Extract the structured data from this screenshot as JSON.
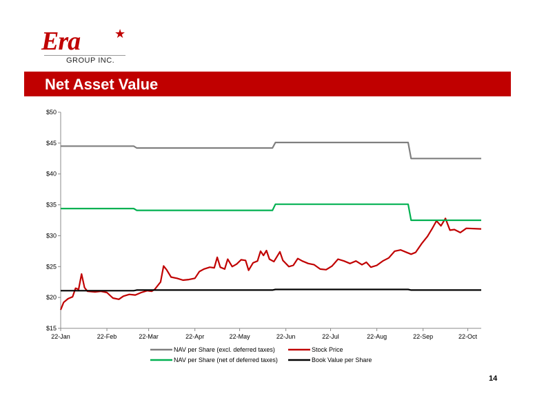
{
  "logo": {
    "wordmark": "Era",
    "subtitle": "GROUP INC."
  },
  "header": {
    "title": "Net Asset Value"
  },
  "page_number": "14",
  "colors": {
    "brand_red": "#c00000",
    "nav_gray": "#7f7f7f",
    "nav_green": "#00b050",
    "stock_red": "#c00000",
    "book_black": "#000000"
  },
  "chart_data": {
    "type": "line",
    "title": "",
    "xlabel": "",
    "ylabel": "",
    "x_ticks": [
      "22-Jan",
      "22-Feb",
      "22-Mar",
      "22-Apr",
      "22-May",
      "22-Jun",
      "22-Jul",
      "22-Aug",
      "22-Sep",
      "22-Oct"
    ],
    "y_ticks": [
      "$15",
      "$20",
      "$25",
      "$30",
      "$35",
      "$40",
      "$45",
      "$50"
    ],
    "ylim": [
      15,
      50
    ],
    "x_range": [
      "2013-01-22",
      "2013-10-31"
    ],
    "grid": false,
    "legend_position": "bottom",
    "series": [
      {
        "name": "NAV per Share (excl. deferred taxes)",
        "color": "#7f7f7f",
        "points": [
          [
            "2013-01-22",
            44.5
          ],
          [
            "2013-03-12",
            44.5
          ],
          [
            "2013-03-14",
            44.2
          ],
          [
            "2013-06-13",
            44.2
          ],
          [
            "2013-06-15",
            45.1
          ],
          [
            "2013-09-12",
            45.1
          ],
          [
            "2013-09-14",
            42.5
          ],
          [
            "2013-10-31",
            42.5
          ]
        ]
      },
      {
        "name": "Stock Price",
        "color": "#c00000",
        "points": [
          [
            "2013-01-22",
            18.0
          ],
          [
            "2013-01-24",
            19.2
          ],
          [
            "2013-01-27",
            19.8
          ],
          [
            "2013-01-30",
            20.1
          ],
          [
            "2013-02-01",
            21.5
          ],
          [
            "2013-02-03",
            21.3
          ],
          [
            "2013-02-05",
            23.8
          ],
          [
            "2013-02-07",
            21.6
          ],
          [
            "2013-02-09",
            21.0
          ],
          [
            "2013-02-14",
            20.9
          ],
          [
            "2013-02-18",
            21.0
          ],
          [
            "2013-02-22",
            20.8
          ],
          [
            "2013-02-26",
            19.9
          ],
          [
            "2013-03-02",
            19.7
          ],
          [
            "2013-03-05",
            20.2
          ],
          [
            "2013-03-09",
            20.5
          ],
          [
            "2013-03-13",
            20.4
          ],
          [
            "2013-03-17",
            20.8
          ],
          [
            "2013-03-21",
            21.1
          ],
          [
            "2013-03-24",
            21.0
          ],
          [
            "2013-03-26",
            21.3
          ],
          [
            "2013-03-30",
            22.5
          ],
          [
            "2013-04-01",
            25.1
          ],
          [
            "2013-04-03",
            24.5
          ],
          [
            "2013-04-06",
            23.3
          ],
          [
            "2013-04-10",
            23.1
          ],
          [
            "2013-04-14",
            22.8
          ],
          [
            "2013-04-18",
            22.9
          ],
          [
            "2013-04-22",
            23.1
          ],
          [
            "2013-04-25",
            24.2
          ],
          [
            "2013-04-28",
            24.6
          ],
          [
            "2013-05-02",
            24.9
          ],
          [
            "2013-05-05",
            24.8
          ],
          [
            "2013-05-07",
            26.5
          ],
          [
            "2013-05-09",
            24.9
          ],
          [
            "2013-05-12",
            24.6
          ],
          [
            "2013-05-14",
            26.2
          ],
          [
            "2013-05-17",
            25.0
          ],
          [
            "2013-05-20",
            25.4
          ],
          [
            "2013-05-23",
            26.1
          ],
          [
            "2013-05-26",
            26.0
          ],
          [
            "2013-05-28",
            24.4
          ],
          [
            "2013-05-31",
            25.6
          ],
          [
            "2013-06-03",
            25.9
          ],
          [
            "2013-06-05",
            27.5
          ],
          [
            "2013-06-07",
            26.8
          ],
          [
            "2013-06-09",
            27.6
          ],
          [
            "2013-06-11",
            26.2
          ],
          [
            "2013-06-14",
            25.8
          ],
          [
            "2013-06-18",
            27.4
          ],
          [
            "2013-06-20",
            26.0
          ],
          [
            "2013-06-24",
            25.0
          ],
          [
            "2013-06-27",
            25.2
          ],
          [
            "2013-06-30",
            26.3
          ],
          [
            "2013-07-03",
            25.9
          ],
          [
            "2013-07-07",
            25.5
          ],
          [
            "2013-07-11",
            25.3
          ],
          [
            "2013-07-15",
            24.6
          ],
          [
            "2013-07-19",
            24.5
          ],
          [
            "2013-07-23",
            25.1
          ],
          [
            "2013-07-27",
            26.2
          ],
          [
            "2013-07-31",
            25.9
          ],
          [
            "2013-08-04",
            25.5
          ],
          [
            "2013-08-08",
            25.9
          ],
          [
            "2013-08-12",
            25.3
          ],
          [
            "2013-08-15",
            25.7
          ],
          [
            "2013-08-18",
            24.9
          ],
          [
            "2013-08-22",
            25.2
          ],
          [
            "2013-08-26",
            25.9
          ],
          [
            "2013-08-30",
            26.4
          ],
          [
            "2013-09-03",
            27.5
          ],
          [
            "2013-09-07",
            27.7
          ],
          [
            "2013-09-11",
            27.3
          ],
          [
            "2013-09-14",
            27.0
          ],
          [
            "2013-09-17",
            27.3
          ],
          [
            "2013-09-21",
            28.7
          ],
          [
            "2013-09-25",
            29.9
          ],
          [
            "2013-09-28",
            31.1
          ],
          [
            "2013-10-01",
            32.4
          ],
          [
            "2013-10-04",
            31.6
          ],
          [
            "2013-10-07",
            32.8
          ],
          [
            "2013-10-10",
            30.9
          ],
          [
            "2013-10-13",
            31.0
          ],
          [
            "2013-10-17",
            30.5
          ],
          [
            "2013-10-21",
            31.2
          ],
          [
            "2013-10-31",
            31.1
          ]
        ]
      },
      {
        "name": "NAV per Share (net of deferred taxes)",
        "color": "#00b050",
        "points": [
          [
            "2013-01-22",
            34.4
          ],
          [
            "2013-03-12",
            34.4
          ],
          [
            "2013-03-14",
            34.1
          ],
          [
            "2013-06-13",
            34.1
          ],
          [
            "2013-06-15",
            35.1
          ],
          [
            "2013-09-12",
            35.1
          ],
          [
            "2013-09-14",
            32.5
          ],
          [
            "2013-10-31",
            32.5
          ]
        ]
      },
      {
        "name": "Book Value per Share",
        "color": "#000000",
        "points": [
          [
            "2013-01-22",
            21.1
          ],
          [
            "2013-03-12",
            21.1
          ],
          [
            "2013-03-14",
            21.2
          ],
          [
            "2013-06-13",
            21.2
          ],
          [
            "2013-06-15",
            21.3
          ],
          [
            "2013-09-12",
            21.3
          ],
          [
            "2013-09-14",
            21.2
          ],
          [
            "2013-10-31",
            21.2
          ]
        ]
      }
    ]
  }
}
